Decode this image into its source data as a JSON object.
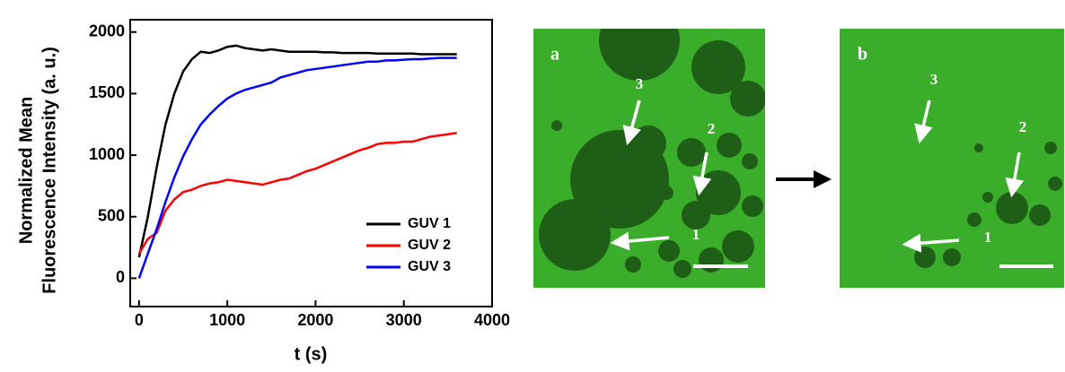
{
  "chart_data": {
    "type": "line",
    "ylabel": [
      "Normalized Mean",
      "Fluorescence Intensity (a. u.)"
    ],
    "xlabel": "t (s)",
    "x": [
      0,
      100,
      200,
      300,
      400,
      500,
      600,
      700,
      800,
      900,
      1000,
      1100,
      1200,
      1300,
      1400,
      1500,
      1600,
      1700,
      1800,
      1900,
      2000,
      2100,
      2200,
      2300,
      2400,
      2500,
      2600,
      2700,
      2800,
      2900,
      3000,
      3100,
      3200,
      3300,
      3400,
      3500,
      3600
    ],
    "series": [
      {
        "name": "GUV 1",
        "color": "#000000",
        "values": [
          170,
          500,
          900,
          1250,
          1500,
          1680,
          1780,
          1840,
          1830,
          1850,
          1880,
          1890,
          1870,
          1860,
          1850,
          1860,
          1850,
          1840,
          1840,
          1840,
          1840,
          1835,
          1835,
          1830,
          1830,
          1830,
          1830,
          1825,
          1825,
          1825,
          1825,
          1825,
          1820,
          1820,
          1820,
          1820,
          1820
        ]
      },
      {
        "name": "GUV 2",
        "color": "#ff0000",
        "values": [
          200,
          320,
          370,
          550,
          640,
          700,
          720,
          750,
          770,
          780,
          800,
          790,
          780,
          770,
          760,
          780,
          800,
          810,
          840,
          870,
          890,
          920,
          950,
          980,
          1010,
          1040,
          1060,
          1090,
          1100,
          1100,
          1110,
          1110,
          1130,
          1150,
          1160,
          1170,
          1180
        ]
      },
      {
        "name": "GUV 3",
        "color": "#0000ff",
        "values": [
          0,
          200,
          400,
          620,
          820,
          990,
          1130,
          1250,
          1330,
          1400,
          1460,
          1500,
          1530,
          1550,
          1570,
          1590,
          1630,
          1650,
          1670,
          1690,
          1700,
          1710,
          1720,
          1730,
          1740,
          1750,
          1760,
          1760,
          1770,
          1770,
          1775,
          1780,
          1780,
          1785,
          1790,
          1790,
          1790
        ]
      }
    ],
    "xlim": [
      -100,
      4000
    ],
    "xticks": [
      0,
      1000,
      2000,
      3000,
      4000
    ],
    "ylim": [
      -230,
      2100
    ],
    "yticks": [
      0,
      500,
      1000,
      1500,
      2000
    ],
    "legend": "lower right"
  },
  "panels": [
    {
      "label": "a",
      "markers": [
        "3",
        "2",
        "1"
      ]
    },
    {
      "label": "b",
      "markers": [
        "3",
        "2",
        "1"
      ]
    }
  ]
}
